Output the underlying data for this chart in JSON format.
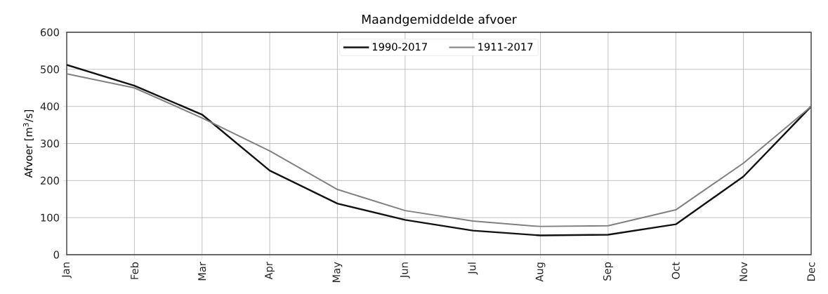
{
  "chart_data": {
    "type": "line",
    "title": "Maandgemiddelde afvoer",
    "ylabel": "Afvoer [m$^{3}$/s]",
    "categories": [
      "Jan",
      "Feb",
      "Mar",
      "Apr",
      "May",
      "Jun",
      "Jul",
      "Aug",
      "Sep",
      "Oct",
      "Nov",
      "Dec"
    ],
    "series": [
      {
        "name": "1990-2017",
        "color": "#111111",
        "values": [
          512,
          456,
          378,
          227,
          138,
          94,
          65,
          52,
          54,
          82,
          211,
          400
        ]
      },
      {
        "name": "1911-2017",
        "color": "#808080",
        "values": [
          488,
          450,
          369,
          280,
          176,
          119,
          91,
          76,
          78,
          121,
          247,
          400
        ]
      }
    ],
    "ylim": [
      0,
      600
    ],
    "yticks": [
      0,
      100,
      200,
      300,
      400,
      500,
      600
    ],
    "grid": true,
    "legend": "top",
    "marker": "none",
    "line_style": "solid"
  }
}
